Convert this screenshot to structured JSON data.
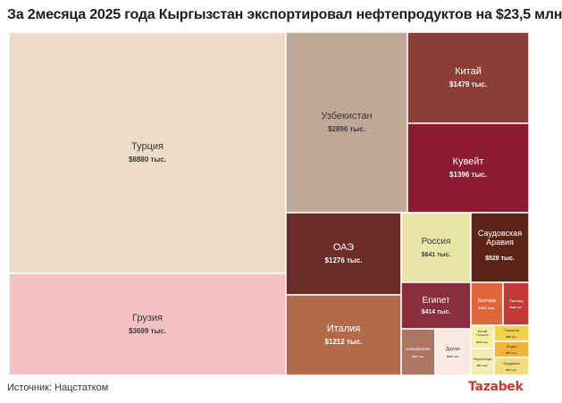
{
  "chart_data": {
    "type": "treemap",
    "title": "За 2месяца 2025 года Кыргызстан экспортировал нефтепродуктов на $23,5 млн",
    "source": "Источник: Нацстатком",
    "brand": "Tazabek",
    "items": [
      {
        "name": "Турция",
        "value_label": "$8880 тыс.",
        "value": 8880,
        "color": "#ecdcc8",
        "text_color": "#3a3a3a"
      },
      {
        "name": "Грузия",
        "value_label": "$3699 тыс.",
        "value": 3699,
        "color": "#f7c1c2",
        "text_color": "#3a3a3a"
      },
      {
        "name": "Узбекистан",
        "value_label": "$2896 тыс.",
        "value": 2896,
        "color": "#c0a899",
        "text_color": "#3a3a3a"
      },
      {
        "name": "Китай",
        "value_label": "$1479 тыс.",
        "value": 1479,
        "color": "#8c3e36",
        "text_color": "#ffffff"
      },
      {
        "name": "Кувейт",
        "value_label": "$1396 тыс.",
        "value": 1396,
        "color": "#8b1c30",
        "text_color": "#ffffff"
      },
      {
        "name": "ОАЭ",
        "value_label": "$1276 тыс.",
        "value": 1276,
        "color": "#6b2b27",
        "text_color": "#ffffff"
      },
      {
        "name": "Италия",
        "value_label": "$1212 тыс.",
        "value": 1212,
        "color": "#b26a48",
        "text_color": "#ffffff"
      },
      {
        "name": "Россия",
        "value_label": "$641 тыс.",
        "value": 641,
        "color": "#eae6a8",
        "text_color": "#3a3a3a"
      },
      {
        "name": "Саудовская Аравия",
        "value_label": "$528 тыс.",
        "value": 528,
        "color": "#5c2416",
        "text_color": "#ffffff"
      },
      {
        "name": "Египет",
        "value_label": "$414 тыс.",
        "value": 414,
        "color": "#8a2e3d",
        "text_color": "#ffffff"
      },
      {
        "name": "Вьетнам",
        "value_label": "$187 тыс.",
        "value": 187,
        "color": "#e0673c",
        "text_color": "#ffffff"
      },
      {
        "name": "Таиланд",
        "value_label": "$146 тыс.",
        "value": 146,
        "color": "#c23b3b",
        "text_color": "#ffffff"
      },
      {
        "name": "Китай Гонконг",
        "value_label": "$100 тыс.",
        "value": 100,
        "color": "#f6f0a2",
        "text_color": "#3a3a3a"
      },
      {
        "name": "Пакистан",
        "value_label": "$98 тыс.",
        "value": 98,
        "color": "#f0d24e",
        "text_color": "#3a3a3a"
      },
      {
        "name": "Индия",
        "value_label": "$97 тыс.",
        "value": 97,
        "color": "#f1b53a",
        "text_color": "#3a3a3a"
      },
      {
        "name": "Нидерланды",
        "value_label": "$67 тыс.",
        "value": 67,
        "color": "#f4ecb0",
        "text_color": "#3a3a3a"
      },
      {
        "name": "Иордания",
        "value_label": "$59 тыс.",
        "value": 59,
        "color": "#f2dc7e",
        "text_color": "#3a3a3a"
      },
      {
        "name": "ЮжнаяКорея",
        "value_label": "$197 тыс.",
        "value": 197,
        "color": "#ad7563",
        "text_color": "#ffffff"
      },
      {
        "name": "Другие",
        "value_label": "$205 тыс.",
        "value": 205,
        "color": "#fbe9e1",
        "text_color": "#3a3a3a"
      }
    ]
  }
}
